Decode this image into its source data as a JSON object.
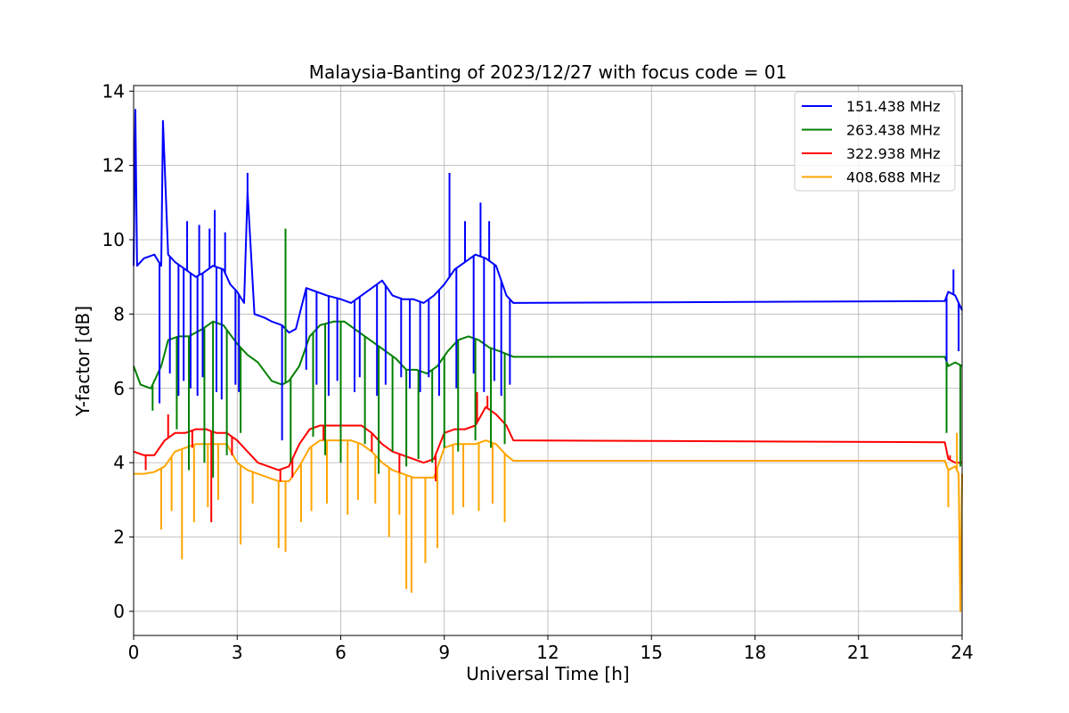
{
  "chart_data": {
    "type": "line",
    "title": "Malaysia-Banting of 2023/12/27 with focus code = 01",
    "xlabel": "Universal Time [h]",
    "ylabel": "Y-factor [dB]",
    "xlim": [
      0,
      24
    ],
    "ylim": [
      -0.65,
      14.15
    ],
    "xticks": [
      0,
      3,
      6,
      9,
      12,
      15,
      18,
      21,
      24
    ],
    "yticks": [
      0,
      2,
      4,
      6,
      8,
      10,
      12,
      14
    ],
    "grid": true,
    "legend_position": "top-right",
    "series": [
      {
        "name": "151.438 MHz",
        "color": "#0000ff",
        "x": [
          0.0,
          0.05,
          0.1,
          0.3,
          0.6,
          0.8,
          0.85,
          1.0,
          1.2,
          1.5,
          1.8,
          2.0,
          2.3,
          2.6,
          2.8,
          3.0,
          3.2,
          3.3,
          3.5,
          3.8,
          4.0,
          4.3,
          4.5,
          4.7,
          5.0,
          5.3,
          5.6,
          6.0,
          6.3,
          6.6,
          6.9,
          7.2,
          7.5,
          7.8,
          8.1,
          8.4,
          8.7,
          9.0,
          9.3,
          9.6,
          9.9,
          10.2,
          10.5,
          10.8,
          11.0,
          23.5,
          23.6,
          23.8,
          24.0
        ],
        "values": [
          9.3,
          13.5,
          9.3,
          9.5,
          9.6,
          9.3,
          13.2,
          9.6,
          9.4,
          9.2,
          9.0,
          9.1,
          9.3,
          9.2,
          8.8,
          8.6,
          8.3,
          11.3,
          8.0,
          7.9,
          7.8,
          7.7,
          7.5,
          7.6,
          8.7,
          8.6,
          8.5,
          8.4,
          8.3,
          8.5,
          8.7,
          8.9,
          8.5,
          8.4,
          8.4,
          8.3,
          8.5,
          8.8,
          9.2,
          9.4,
          9.6,
          9.5,
          9.3,
          8.5,
          8.3,
          8.35,
          8.6,
          8.5,
          8.1
        ]
      },
      {
        "name": "263.438 MHz",
        "color": "#008000",
        "x": [
          0.0,
          0.2,
          0.5,
          0.8,
          1.0,
          1.3,
          1.6,
          2.0,
          2.3,
          2.6,
          3.0,
          3.3,
          3.6,
          4.0,
          4.3,
          4.5,
          4.8,
          5.1,
          5.4,
          5.8,
          6.1,
          6.4,
          6.7,
          7.0,
          7.3,
          7.6,
          7.9,
          8.2,
          8.5,
          8.8,
          9.1,
          9.4,
          9.7,
          10.0,
          10.3,
          10.6,
          11.0,
          23.5,
          23.6,
          23.8,
          24.0
        ],
        "values": [
          6.6,
          6.1,
          6.0,
          6.6,
          7.3,
          7.4,
          7.4,
          7.6,
          7.8,
          7.7,
          7.2,
          6.9,
          6.7,
          6.2,
          6.1,
          6.2,
          6.6,
          7.4,
          7.7,
          7.8,
          7.8,
          7.6,
          7.4,
          7.2,
          7.0,
          6.8,
          6.5,
          6.5,
          6.4,
          6.6,
          7.0,
          7.3,
          7.4,
          7.3,
          7.1,
          7.0,
          6.85,
          6.85,
          6.6,
          6.7,
          6.6
        ]
      },
      {
        "name": "322.938 MHz",
        "color": "#ff0000",
        "x": [
          0.0,
          0.3,
          0.6,
          0.9,
          1.2,
          1.5,
          1.8,
          2.1,
          2.4,
          2.7,
          3.0,
          3.3,
          3.6,
          3.9,
          4.2,
          4.5,
          4.8,
          5.1,
          5.4,
          5.7,
          6.0,
          6.3,
          6.6,
          6.9,
          7.2,
          7.5,
          7.8,
          8.1,
          8.4,
          8.7,
          9.0,
          9.3,
          9.6,
          9.9,
          10.2,
          10.5,
          10.8,
          11.0,
          23.5,
          23.6,
          23.8,
          24.0
        ],
        "values": [
          4.3,
          4.2,
          4.2,
          4.6,
          4.8,
          4.8,
          4.9,
          4.9,
          4.8,
          4.8,
          4.6,
          4.3,
          4.0,
          3.9,
          3.8,
          3.9,
          4.5,
          4.9,
          5.0,
          5.0,
          5.0,
          5.0,
          5.0,
          4.8,
          4.5,
          4.3,
          4.2,
          4.1,
          4.0,
          4.1,
          4.8,
          4.9,
          4.9,
          5.0,
          5.5,
          5.3,
          5.0,
          4.6,
          4.55,
          4.1,
          4.0,
          4.0
        ]
      },
      {
        "name": "408.688 MHz",
        "color": "#ffa500",
        "x": [
          0.0,
          0.3,
          0.6,
          0.9,
          1.2,
          1.5,
          1.8,
          2.1,
          2.4,
          2.7,
          3.0,
          3.3,
          3.6,
          3.9,
          4.2,
          4.5,
          4.8,
          5.1,
          5.4,
          5.7,
          6.0,
          6.3,
          6.6,
          6.9,
          7.2,
          7.5,
          7.8,
          8.1,
          8.4,
          8.7,
          9.0,
          9.3,
          9.6,
          9.9,
          10.2,
          10.5,
          10.8,
          11.0,
          23.5,
          23.6,
          23.8,
          23.9,
          23.95,
          24.0
        ],
        "values": [
          3.7,
          3.7,
          3.75,
          3.9,
          4.3,
          4.4,
          4.5,
          4.5,
          4.5,
          4.5,
          4.0,
          3.8,
          3.7,
          3.6,
          3.5,
          3.5,
          3.9,
          4.4,
          4.6,
          4.6,
          4.6,
          4.6,
          4.5,
          4.3,
          4.0,
          3.8,
          3.7,
          3.6,
          3.6,
          3.6,
          4.4,
          4.5,
          4.5,
          4.5,
          4.6,
          4.5,
          4.2,
          4.05,
          4.05,
          3.8,
          3.9,
          3.7,
          0.0,
          3.7
        ]
      }
    ],
    "spikes": [
      {
        "series": 0,
        "x": [
          0.75,
          1.05,
          1.3,
          1.45,
          1.65,
          1.85,
          2.0,
          2.4,
          2.55,
          2.95,
          3.05,
          4.3,
          4.4,
          5.0,
          5.3,
          5.65,
          5.9,
          6.4,
          6.55,
          7.05,
          7.3,
          7.75,
          8.0,
          8.3,
          8.55,
          8.85,
          9.35,
          9.85,
          10.15,
          10.45,
          10.65,
          10.9,
          23.55,
          23.9
        ],
        "values": [
          5.6,
          6.4,
          5.8,
          6.2,
          6.0,
          5.8,
          6.3,
          5.9,
          5.7,
          6.1,
          5.9,
          4.6,
          10.0,
          6.5,
          6.1,
          5.8,
          6.2,
          5.9,
          6.3,
          5.8,
          6.1,
          6.3,
          6.0,
          5.9,
          6.3,
          5.8,
          6.0,
          6.4,
          5.9,
          6.2,
          5.8,
          6.1,
          6.5,
          7.0
        ]
      },
      {
        "series": 0,
        "x": [
          0.95,
          1.55,
          1.9,
          2.2,
          2.35,
          2.65,
          3.3,
          9.15,
          9.6,
          10.05,
          10.3,
          23.75
        ],
        "values": [
          10.8,
          10.5,
          10.4,
          10.3,
          10.8,
          10.2,
          11.8,
          11.8,
          10.5,
          11.0,
          10.5,
          9.2
        ]
      },
      {
        "series": 1,
        "x": [
          0.55,
          1.25,
          1.6,
          2.05,
          2.3,
          2.7,
          3.1,
          4.4,
          4.55,
          5.2,
          5.55,
          6.0,
          6.7,
          7.1,
          7.5,
          7.9,
          8.25,
          8.65,
          9.0,
          9.4,
          9.9,
          10.35,
          10.75,
          23.55,
          23.95
        ],
        "values": [
          5.4,
          4.9,
          3.8,
          4.0,
          3.6,
          4.2,
          4.8,
          10.3,
          4.0,
          4.7,
          4.2,
          4.0,
          4.5,
          3.7,
          4.3,
          3.9,
          4.1,
          4.0,
          4.4,
          4.3,
          4.6,
          4.4,
          4.5,
          4.8,
          3.9
        ]
      },
      {
        "series": 2,
        "x": [
          0.35,
          1.0,
          1.7,
          2.25,
          2.85,
          4.25,
          4.6,
          5.5,
          6.9,
          7.7,
          8.75,
          9.95,
          10.25,
          23.65
        ],
        "values": [
          3.8,
          5.3,
          4.4,
          2.4,
          4.2,
          3.5,
          3.6,
          4.6,
          4.3,
          3.7,
          3.5,
          5.9,
          5.8,
          4.2
        ]
      },
      {
        "series": 3,
        "x": [
          0.8,
          1.1,
          1.4,
          1.75,
          2.15,
          2.45,
          3.1,
          3.45,
          4.2,
          4.4,
          4.85,
          5.15,
          5.6,
          6.2,
          6.5,
          7.0,
          7.4,
          7.7,
          7.9,
          8.05,
          8.45,
          8.8,
          9.25,
          9.55,
          10.0,
          10.4,
          10.75,
          23.6,
          23.85
        ],
        "values": [
          2.2,
          2.7,
          1.4,
          2.4,
          2.8,
          3.0,
          1.8,
          2.9,
          1.7,
          1.6,
          2.4,
          2.7,
          2.9,
          2.6,
          3.0,
          2.9,
          2.0,
          2.6,
          0.6,
          0.5,
          1.3,
          1.7,
          2.6,
          2.8,
          2.7,
          2.9,
          2.4,
          2.8,
          4.8
        ]
      }
    ]
  }
}
